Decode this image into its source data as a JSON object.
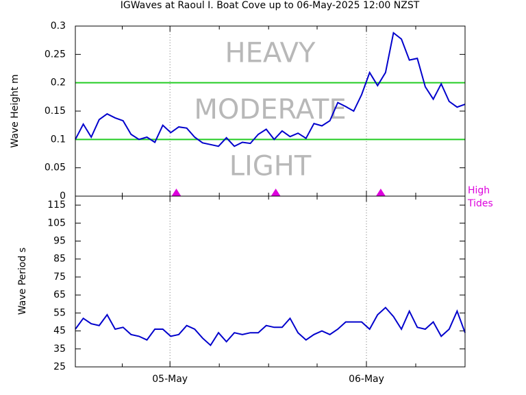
{
  "chart_data": [
    {
      "type": "line",
      "title": "IGWaves at Raoul I. Boat Cove up to 06-May-2025 12:00 NZST",
      "ylabel": "Wave Height m",
      "x": [
        0,
        1,
        2,
        3,
        4,
        5,
        6,
        7,
        8,
        9,
        10,
        11,
        12,
        13,
        14,
        15,
        16,
        17,
        18,
        19,
        20,
        21,
        22,
        23,
        24,
        25,
        26,
        27,
        28,
        29,
        30,
        31,
        32,
        33,
        34,
        35,
        36,
        37,
        38,
        39,
        40,
        41,
        42,
        43,
        44,
        45,
        46,
        47,
        48,
        49
      ],
      "series": [
        {
          "name": "Wave Height",
          "color": "#0000cc",
          "values": [
            0.1,
            0.127,
            0.104,
            0.135,
            0.145,
            0.138,
            0.133,
            0.109,
            0.1,
            0.104,
            0.095,
            0.125,
            0.112,
            0.122,
            0.12,
            0.104,
            0.094,
            0.091,
            0.088,
            0.103,
            0.088,
            0.095,
            0.093,
            0.109,
            0.118,
            0.1,
            0.115,
            0.105,
            0.111,
            0.102,
            0.128,
            0.124,
            0.133,
            0.165,
            0.158,
            0.15,
            0.179,
            0.218,
            0.195,
            0.218,
            0.288,
            0.277,
            0.24,
            0.243,
            0.193,
            0.171,
            0.198,
            0.167,
            0.157,
            0.162
          ]
        }
      ],
      "xlim": [
        0,
        49
      ],
      "ylim": [
        0,
        0.3
      ],
      "yticks": [
        0,
        0.05,
        0.1,
        0.15,
        0.2,
        0.25,
        0.3
      ],
      "thresholds": [
        0.1,
        0.2
      ],
      "threshold_color": "#22cc22",
      "zones": [
        "LIGHT",
        "MODERATE",
        "HEAVY"
      ],
      "high_tides": [
        12.7,
        25.2,
        38.4
      ],
      "high_tides_label": [
        "High",
        "Tides"
      ],
      "tide_color": "#dd00dd"
    },
    {
      "type": "line",
      "ylabel": "Wave Period s",
      "x": [
        0,
        1,
        2,
        3,
        4,
        5,
        6,
        7,
        8,
        9,
        10,
        11,
        12,
        13,
        14,
        15,
        16,
        17,
        18,
        19,
        20,
        21,
        22,
        23,
        24,
        25,
        26,
        27,
        28,
        29,
        30,
        31,
        32,
        33,
        34,
        35,
        36,
        37,
        38,
        39,
        40,
        41,
        42,
        43,
        44,
        45,
        46,
        47,
        48,
        49
      ],
      "series": [
        {
          "name": "Wave Period",
          "color": "#0000cc",
          "values": [
            46,
            52,
            49,
            48,
            54,
            46,
            47,
            43,
            42,
            40,
            46,
            46,
            42,
            43,
            48,
            46,
            41,
            37,
            44,
            39,
            44,
            43,
            44,
            44,
            48,
            47,
            47,
            52,
            44,
            40,
            43,
            45,
            43,
            46,
            50,
            50,
            50,
            46,
            54,
            58,
            53,
            46,
            56,
            47,
            46,
            50,
            42,
            46,
            56,
            44
          ]
        }
      ],
      "xlim": [
        0,
        49
      ],
      "ylim": [
        25,
        120
      ],
      "yticks": [
        25,
        35,
        45,
        55,
        65,
        75,
        85,
        95,
        105,
        115
      ],
      "xticks": [
        {
          "value": 11.9,
          "label": "05-May"
        },
        {
          "value": 36.6,
          "label": "06-May"
        }
      ],
      "x_minor_ticks": [
        5.9,
        18.1,
        24.3,
        30.4,
        42.8
      ]
    }
  ]
}
